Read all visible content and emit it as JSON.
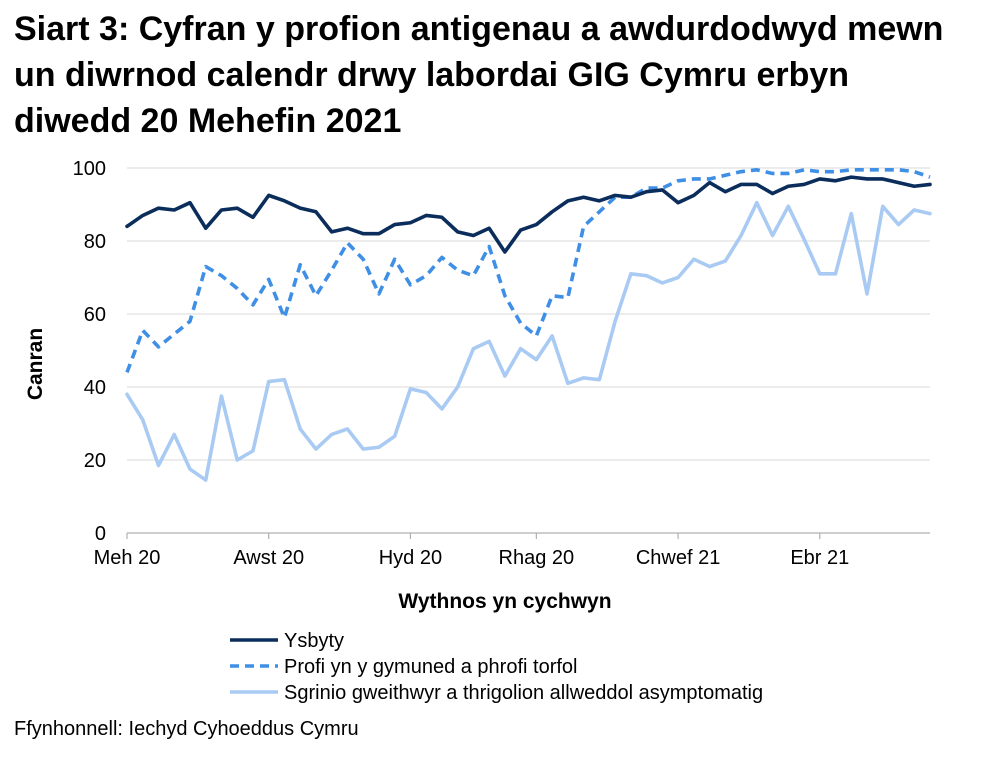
{
  "title": "Siart 3: Cyfran y profion antigenau a awdurdodwyd mewn un diwrnod calendr drwy labordai GIG Cymru erbyn diwedd 20 Mehefin 2021",
  "source": "Ffynhonnell: Iechyd Cyhoeddus Cymru",
  "chart_data": {
    "type": "line",
    "xlabel": "Wythnos yn cychwyn",
    "ylabel": "Canran",
    "ylim": [
      0,
      100
    ],
    "yticks": [
      0,
      20,
      40,
      60,
      80,
      100
    ],
    "grid": "horizontal",
    "legend_position": "bottom",
    "x_tick_labels": [
      {
        "label": "Meh 20",
        "index": 0
      },
      {
        "label": "Awst 20",
        "index": 9
      },
      {
        "label": "Hyd 20",
        "index": 18
      },
      {
        "label": "Rhag 20",
        "index": 26
      },
      {
        "label": "Chwef 21",
        "index": 35
      },
      {
        "label": "Ebr 21",
        "index": 44
      }
    ],
    "series": [
      {
        "name": "Ysbyty",
        "color": "#0b2d5b",
        "style": "solid",
        "values": [
          84,
          87,
          89,
          88.5,
          90.5,
          83.5,
          88.5,
          89,
          86.5,
          92.5,
          91,
          89,
          88,
          82.5,
          83.5,
          82,
          82,
          84.5,
          85,
          87,
          86.5,
          82.5,
          81.5,
          83.5,
          77,
          83,
          84.5,
          88,
          91,
          92,
          91,
          92.5,
          92,
          93.5,
          94,
          90.5,
          92.5,
          96,
          93.5,
          95.5,
          95.5,
          93,
          95,
          95.5,
          97,
          96.5,
          97.5,
          97,
          97,
          96,
          95,
          95.5
        ]
      },
      {
        "name": "Profi yn y gymuned a phrofi torfol",
        "color": "#3f8fe6",
        "style": "dashed",
        "values": [
          44,
          55.5,
          51,
          54.5,
          58,
          73,
          70.5,
          67,
          62.5,
          69.5,
          59,
          73.5,
          65,
          72,
          79.5,
          75,
          65.5,
          75,
          68,
          70.5,
          75.5,
          72,
          70.5,
          78.5,
          65,
          57.5,
          54,
          65,
          64.5,
          84,
          88,
          92,
          92,
          94.5,
          94.5,
          96.5,
          97,
          97,
          98,
          99,
          99.5,
          98.5,
          98.5,
          99.5,
          99,
          99,
          99.5,
          99.5,
          99.5,
          99.5,
          99,
          97.5
        ]
      },
      {
        "name": "Sgrinio gweithwyr a thrigolion allweddol asymptomatig",
        "color": "#a9cbf3",
        "style": "solid",
        "values": [
          38,
          31,
          18.5,
          27,
          17.5,
          14.5,
          37.5,
          20,
          22.5,
          41.5,
          42,
          28.5,
          23,
          27,
          28.5,
          23,
          23.5,
          26.5,
          39.5,
          38.5,
          34,
          40,
          50.5,
          52.5,
          43,
          50.5,
          47.5,
          54,
          41,
          42.5,
          42,
          58,
          71,
          70.5,
          68.5,
          70,
          75,
          73,
          74.5,
          81.5,
          90.5,
          81.5,
          89.5,
          80.5,
          71,
          71,
          87.5,
          65.5,
          89.5,
          84.5,
          88.5,
          87.5
        ]
      }
    ]
  }
}
